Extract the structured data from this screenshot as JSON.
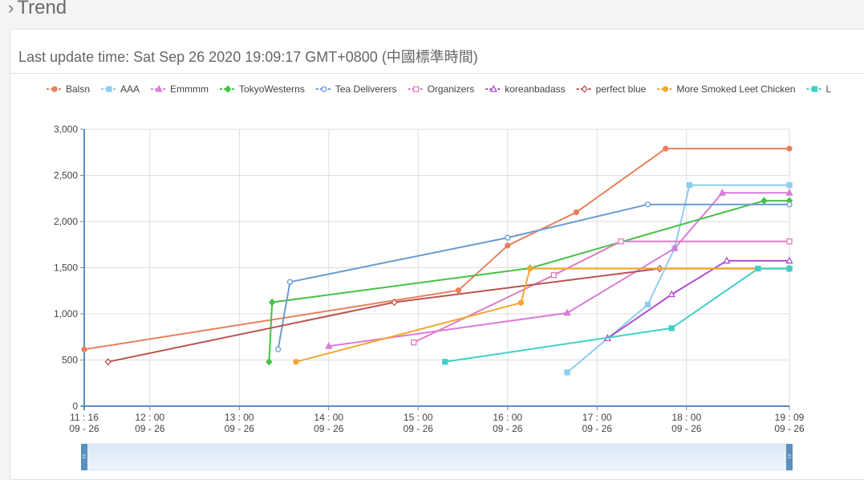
{
  "section": {
    "title": "Trend",
    "icon": "chevron-right-icon"
  },
  "card": {
    "title": "Last update time: Sat Sep 26 2020 19:09:17 GMT+0800 (中國標準時間)"
  },
  "chart_data": {
    "type": "line",
    "title": "",
    "xlabel": "",
    "ylabel": "",
    "grid": true,
    "legend_position": "top",
    "x_range": [
      "2020-09-26 11:16",
      "2020-09-26 19:09"
    ],
    "ylim": [
      0,
      3000
    ],
    "y_ticks": [
      0,
      500,
      1000,
      1500,
      2000,
      2500,
      3000
    ],
    "y_tick_labels": [
      "0",
      "500",
      "1,000",
      "1,500",
      "2,000",
      "2,500",
      "3,000"
    ],
    "x_ticks": [
      {
        "time": "2020-09-26 11:16",
        "top": "11 : 16",
        "bottom": "09 - 26"
      },
      {
        "time": "2020-09-26 12:00",
        "top": "12 : 00",
        "bottom": "09 - 26"
      },
      {
        "time": "2020-09-26 13:00",
        "top": "13 : 00",
        "bottom": "09 - 26"
      },
      {
        "time": "2020-09-26 14:00",
        "top": "14 : 00",
        "bottom": "09 - 26"
      },
      {
        "time": "2020-09-26 15:00",
        "top": "15 : 00",
        "bottom": "09 - 26"
      },
      {
        "time": "2020-09-26 16:00",
        "top": "16 : 00",
        "bottom": "09 - 26"
      },
      {
        "time": "2020-09-26 17:00",
        "top": "17 : 00",
        "bottom": "09 - 26"
      },
      {
        "time": "2020-09-26 18:00",
        "top": "18 : 00",
        "bottom": "09 - 26"
      },
      {
        "time": "2020-09-26 19:09",
        "top": "19 : 09",
        "bottom": "09 - 26"
      }
    ],
    "series": [
      {
        "name": "Balsn",
        "color": "#e8805a",
        "marker": "circle-filled",
        "points": [
          [
            "2020-09-26 11:16",
            615
          ],
          [
            "2020-09-26 15:27",
            1255
          ],
          [
            "2020-09-26 16:00",
            1740
          ],
          [
            "2020-09-26 16:46",
            2100
          ],
          [
            "2020-09-26 17:46",
            2790
          ],
          [
            "2020-09-26 19:09",
            2790
          ]
        ]
      },
      {
        "name": "AAA",
        "color": "#8ecdee",
        "marker": "square-filled",
        "points": [
          [
            "2020-09-26 16:40",
            365
          ],
          [
            "2020-09-26 17:34",
            1100
          ],
          [
            "2020-09-26 17:52",
            1710
          ],
          [
            "2020-09-26 18:02",
            2395
          ],
          [
            "2020-09-26 19:09",
            2395
          ]
        ]
      },
      {
        "name": "Emmmm",
        "color": "#d97cd9",
        "marker": "triangle-filled",
        "points": [
          [
            "2020-09-26 14:00",
            650
          ],
          [
            "2020-09-26 16:40",
            1010
          ],
          [
            "2020-09-26 17:52",
            1710
          ],
          [
            "2020-09-26 18:24",
            2310
          ],
          [
            "2020-09-26 19:09",
            2310
          ]
        ]
      },
      {
        "name": "TokyoWesterns",
        "color": "#45c245",
        "marker": "diamond-filled",
        "points": [
          [
            "2020-09-26 13:20",
            480
          ],
          [
            "2020-09-26 13:22",
            1125
          ],
          [
            "2020-09-26 16:15",
            1495
          ],
          [
            "2020-09-26 18:52",
            2225
          ],
          [
            "2020-09-26 19:09",
            2225
          ]
        ]
      },
      {
        "name": "Tea Deliverers",
        "color": "#6b9bd1",
        "marker": "circle-open",
        "points": [
          [
            "2020-09-26 13:26",
            615
          ],
          [
            "2020-09-26 13:34",
            1345
          ],
          [
            "2020-09-26 16:00",
            1825
          ],
          [
            "2020-09-26 17:34",
            2185
          ],
          [
            "2020-09-26 19:09",
            2185
          ]
        ]
      },
      {
        "name": "Organizers",
        "color": "#e07cc0",
        "marker": "square-open",
        "points": [
          [
            "2020-09-26 14:57",
            690
          ],
          [
            "2020-09-26 16:31",
            1420
          ],
          [
            "2020-09-26 17:16",
            1785
          ],
          [
            "2020-09-26 19:09",
            1785
          ]
        ]
      },
      {
        "name": "koreanbadass",
        "color": "#b04fc9",
        "marker": "triangle-open",
        "points": [
          [
            "2020-09-26 17:07",
            735
          ],
          [
            "2020-09-26 17:50",
            1210
          ],
          [
            "2020-09-26 18:27",
            1575
          ],
          [
            "2020-09-26 19:09",
            1575
          ]
        ]
      },
      {
        "name": "perfect blue",
        "color": "#b85450",
        "marker": "diamond-open",
        "points": [
          [
            "2020-09-26 11:32",
            480
          ],
          [
            "2020-09-26 14:44",
            1125
          ],
          [
            "2020-09-26 17:42",
            1490
          ],
          [
            "2020-09-26 19:09",
            1490
          ]
        ]
      },
      {
        "name": "More Smoked Leet Chicken",
        "color": "#f0a830",
        "marker": "circle-filled",
        "points": [
          [
            "2020-09-26 13:38",
            480
          ],
          [
            "2020-09-26 16:09",
            1120
          ],
          [
            "2020-09-26 16:15",
            1490
          ],
          [
            "2020-09-26 19:09",
            1490
          ]
        ]
      },
      {
        "name": "L",
        "color": "#40d0c8",
        "marker": "square-filled",
        "points": [
          [
            "2020-09-26 15:18",
            480
          ],
          [
            "2020-09-26 17:50",
            845
          ],
          [
            "2020-09-26 18:48",
            1490
          ],
          [
            "2020-09-26 19:09",
            1490
          ]
        ]
      }
    ]
  }
}
